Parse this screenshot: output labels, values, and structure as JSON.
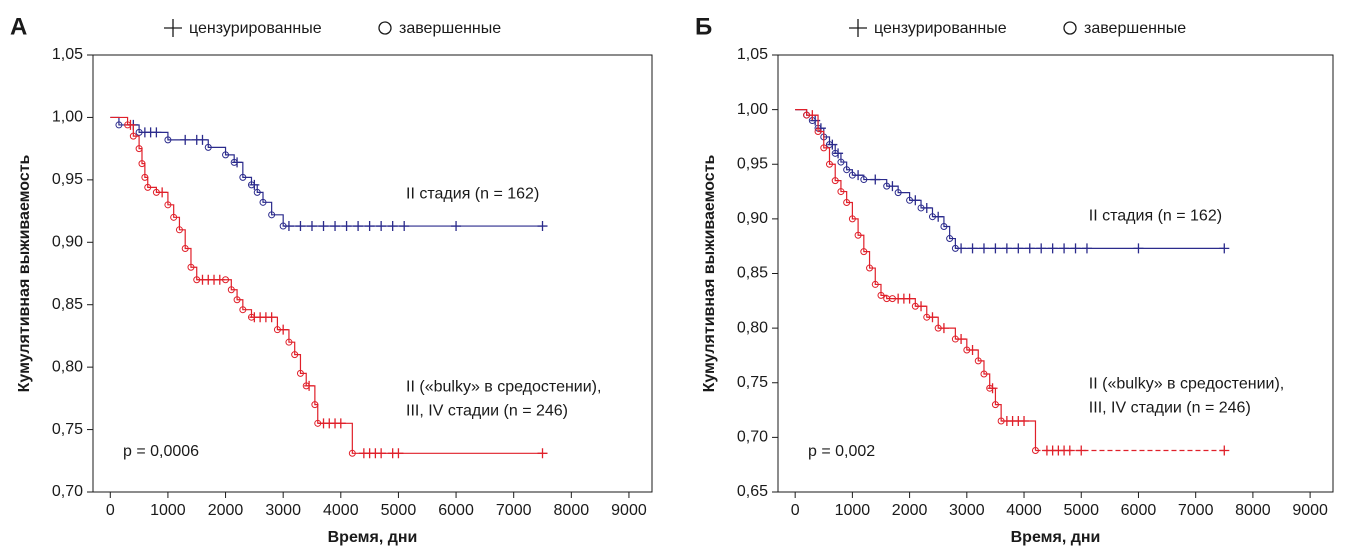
{
  "chart_data": [
    {
      "type": "step",
      "panel": "А",
      "legend": [
        "цензурированные",
        "завершенные"
      ],
      "xlabel": "Время, дни",
      "ylabel": "Кумулятивная выживаемость",
      "annotation": "p = 0,0006",
      "xlim": [
        -300,
        9400
      ],
      "xticks": [
        0,
        1000,
        2000,
        3000,
        4000,
        5000,
        6000,
        7000,
        8000,
        9000
      ],
      "ylim": [
        0.7,
        1.05
      ],
      "yticks": [
        {
          "value": 0.7,
          "label": "0,70"
        },
        {
          "value": 0.75,
          "label": "0,75"
        },
        {
          "value": 0.8,
          "label": "0,80"
        },
        {
          "value": 0.85,
          "label": "0,85"
        },
        {
          "value": 0.9,
          "label": "0,90"
        },
        {
          "value": 0.95,
          "label": "0,95"
        },
        {
          "value": 1.0,
          "label": "1,00"
        },
        {
          "value": 1.05,
          "label": "1,05"
        }
      ],
      "series": [
        {
          "label": [
            "II стадия (n = 162)"
          ],
          "color": "#2b2b8c",
          "dash_tail": false,
          "x": [
            0,
            150,
            500,
            1000,
            1700,
            2000,
            2150,
            2300,
            2450,
            2550,
            2650,
            2800,
            3000,
            7500
          ],
          "values": [
            1.0,
            0.994,
            0.988,
            0.982,
            0.976,
            0.97,
            0.964,
            0.952,
            0.946,
            0.94,
            0.932,
            0.922,
            0.913,
            0.913
          ],
          "censored_x": [
            400,
            600,
            700,
            800,
            1300,
            1500,
            1600,
            2200,
            2500,
            3100,
            3300,
            3500,
            3700,
            3900,
            4100,
            4300,
            4500,
            4700,
            4900,
            5100,
            6000,
            7500
          ]
        },
        {
          "label": [
            "II («bulky» в средостении),",
            "III, IV стадии (n = 246)"
          ],
          "color": "#e0202a",
          "dash_tail": false,
          "x": [
            0,
            300,
            400,
            500,
            550,
            600,
            650,
            800,
            1000,
            1100,
            1200,
            1300,
            1400,
            1500,
            2000,
            2100,
            2200,
            2300,
            2450,
            2900,
            3100,
            3200,
            3300,
            3400,
            3550,
            3600,
            4200,
            7500
          ],
          "values": [
            1.0,
            0.994,
            0.985,
            0.975,
            0.963,
            0.952,
            0.944,
            0.94,
            0.93,
            0.92,
            0.91,
            0.895,
            0.88,
            0.87,
            0.87,
            0.862,
            0.854,
            0.846,
            0.84,
            0.83,
            0.82,
            0.81,
            0.795,
            0.785,
            0.77,
            0.755,
            0.731,
            0.731
          ],
          "censored_x": [
            350,
            900,
            1600,
            1700,
            1800,
            1900,
            2500,
            2600,
            2700,
            2800,
            3000,
            3450,
            3700,
            3800,
            3900,
            4000,
            4400,
            4500,
            4600,
            4700,
            4900,
            5000,
            7500
          ]
        }
      ]
    },
    {
      "type": "step",
      "panel": "Б",
      "legend": [
        "цензурированные",
        "завершенные"
      ],
      "xlabel": "Время, дни",
      "ylabel": "Кумулятивная выживаемость",
      "annotation": "p = 0,002",
      "xlim": [
        -300,
        9400
      ],
      "xticks": [
        0,
        1000,
        2000,
        3000,
        4000,
        5000,
        6000,
        7000,
        8000,
        9000
      ],
      "ylim": [
        0.65,
        1.05
      ],
      "yticks": [
        {
          "value": 0.65,
          "label": "0,65"
        },
        {
          "value": 0.7,
          "label": "0,70"
        },
        {
          "value": 0.75,
          "label": "0,75"
        },
        {
          "value": 0.8,
          "label": "0,80"
        },
        {
          "value": 0.85,
          "label": "0,85"
        },
        {
          "value": 0.9,
          "label": "0,90"
        },
        {
          "value": 0.95,
          "label": "0,95"
        },
        {
          "value": 1.0,
          "label": "1,00"
        },
        {
          "value": 1.05,
          "label": "1,05"
        }
      ],
      "series": [
        {
          "label": [
            "II стадия (n = 162)"
          ],
          "color": "#2b2b8c",
          "dash_tail": false,
          "x": [
            0,
            200,
            300,
            400,
            500,
            600,
            700,
            800,
            900,
            1000,
            1200,
            1600,
            1800,
            2000,
            2200,
            2400,
            2600,
            2700,
            2800,
            7500
          ],
          "values": [
            1.0,
            0.995,
            0.99,
            0.983,
            0.975,
            0.968,
            0.96,
            0.952,
            0.945,
            0.94,
            0.936,
            0.93,
            0.924,
            0.917,
            0.91,
            0.902,
            0.893,
            0.882,
            0.873,
            0.873
          ],
          "censored_x": [
            350,
            450,
            650,
            750,
            1100,
            1400,
            1700,
            2100,
            2300,
            2500,
            2900,
            3100,
            3300,
            3500,
            3700,
            3900,
            4100,
            4300,
            4500,
            4700,
            4900,
            5100,
            6000,
            7500
          ]
        },
        {
          "label": [
            "II («bulky» в средостении),",
            "III, IV стадии (n = 246)"
          ],
          "color": "#e0202a",
          "dash_tail": true,
          "x": [
            0,
            200,
            400,
            500,
            600,
            700,
            800,
            900,
            1000,
            1100,
            1200,
            1300,
            1400,
            1500,
            1600,
            1700,
            2100,
            2300,
            2500,
            2800,
            3000,
            3200,
            3300,
            3400,
            3500,
            3600,
            4200,
            7500
          ],
          "values": [
            1.0,
            0.995,
            0.98,
            0.965,
            0.95,
            0.935,
            0.925,
            0.915,
            0.9,
            0.885,
            0.87,
            0.855,
            0.84,
            0.83,
            0.827,
            0.827,
            0.82,
            0.81,
            0.8,
            0.79,
            0.78,
            0.77,
            0.758,
            0.745,
            0.73,
            0.715,
            0.688,
            0.688
          ],
          "censored_x": [
            300,
            1800,
            1900,
            2000,
            2200,
            2400,
            2600,
            2900,
            3100,
            3450,
            3700,
            3800,
            3900,
            4000,
            4400,
            4500,
            4600,
            4700,
            4800,
            5000,
            7500
          ]
        }
      ]
    }
  ]
}
